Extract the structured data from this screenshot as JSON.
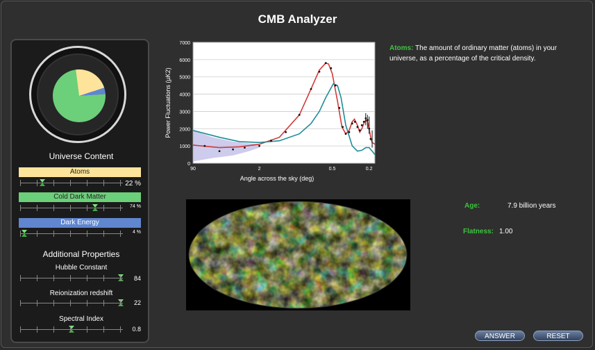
{
  "app": {
    "title": "CMB Analyzer"
  },
  "universe": {
    "heading": "Universe Content",
    "atoms": {
      "label": "Atoms",
      "value_text": "22 %",
      "value": 22,
      "color": "#fde49a"
    },
    "cdm": {
      "label": "Cold Dark Matter",
      "value_text": "74 %",
      "value": 74,
      "color": "#6ccf7a"
    },
    "dark_energy": {
      "label": "Dark Energy",
      "value_text": "4 %",
      "value": 4,
      "color": "#5f86cf"
    }
  },
  "additional": {
    "heading": "Additional Properties",
    "hubble": {
      "label": "Hubble Constant",
      "value": "84"
    },
    "reion": {
      "label": "Reionization redshift",
      "value": "22"
    },
    "spectral": {
      "label": "Spectral Index",
      "value": "0.8"
    }
  },
  "description": {
    "term": "Atoms:",
    "text": " The amount of ordinary matter (atoms) in your universe, as a percentage of the critical density."
  },
  "stats": {
    "age_label": "Age:",
    "age_value": "7.9 billion years",
    "flatness_label": "Flatness:",
    "flatness_value": "1.00"
  },
  "buttons": {
    "answer": "ANSWER",
    "reset": "RESET"
  },
  "chart_data": {
    "type": "line",
    "xlabel": "Angle across the sky (deg)",
    "ylabel": "Power Fluctuations (µK2)",
    "ylim": [
      0,
      7000
    ],
    "yticks": [
      "0",
      "1000",
      "2000",
      "3000",
      "4000",
      "5000",
      "6000",
      "7000"
    ],
    "xticks": [
      "90",
      "2",
      "0.5",
      "0.2"
    ],
    "grid": true,
    "x_scale": "log (multipole ℓ 2 to 1100)",
    "series": [
      {
        "color": "#d23a3a",
        "x": [
          2,
          5,
          10,
          20,
          40,
          80,
          120,
          160,
          200,
          220,
          250,
          300,
          350,
          400,
          450,
          500,
          540,
          600,
          650,
          700,
          750,
          800,
          850,
          900,
          950,
          1000,
          1100
        ],
        "y": [
          1050,
          900,
          950,
          1100,
          1500,
          2800,
          4300,
          5400,
          5800,
          5750,
          5200,
          3600,
          2100,
          1700,
          1900,
          2400,
          2550,
          2200,
          1800,
          2000,
          2300,
          2500,
          2400,
          2000,
          1500,
          1200,
          1100
        ]
      },
      {
        "color": "#1e8c96",
        "x": [
          2,
          5,
          10,
          20,
          40,
          80,
          120,
          160,
          200,
          260,
          300,
          340,
          400,
          500,
          600,
          700,
          800,
          900,
          1000,
          1100
        ],
        "y": [
          1900,
          1500,
          1250,
          1200,
          1300,
          1700,
          2300,
          3000,
          3800,
          4600,
          4500,
          3800,
          2200,
          1000,
          700,
          750,
          900,
          900,
          700,
          500
        ]
      },
      {
        "color": "#111111",
        "points": true,
        "x": [
          3,
          5,
          8,
          12,
          20,
          30,
          50,
          80,
          120,
          160,
          200,
          240,
          280,
          320,
          360,
          400,
          450,
          500,
          550,
          600,
          650,
          700,
          750,
          800,
          850,
          900,
          950
        ],
        "y": [
          1000,
          700,
          800,
          900,
          1000,
          1300,
          1800,
          2800,
          4300,
          5300,
          5800,
          5500,
          4500,
          3200,
          2100,
          1700,
          1800,
          2300,
          2400,
          2100,
          1900,
          2200,
          2400,
          2600,
          2500,
          2000,
          1400
        ]
      }
    ]
  }
}
